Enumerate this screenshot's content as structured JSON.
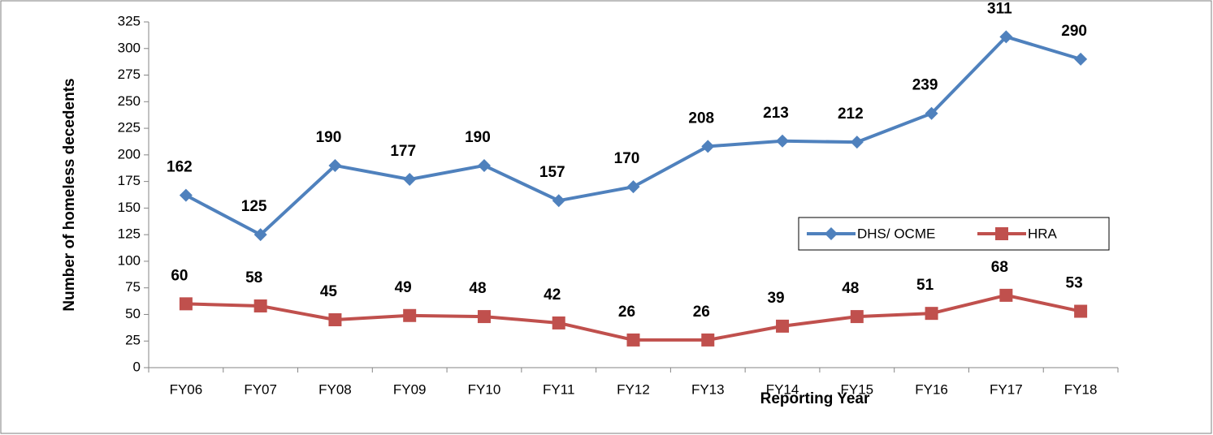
{
  "chart_data": {
    "type": "line",
    "x_label": "Reporting Year",
    "y_label": "Number of homeless decedents",
    "categories": [
      "FY06",
      "FY07",
      "FY08",
      "FY09",
      "FY10",
      "FY11",
      "FY12",
      "FY13",
      "FY14",
      "FY15",
      "FY16",
      "FY17",
      "FY18"
    ],
    "series": [
      {
        "name": "DHS/ OCME",
        "color": "#4f81bd",
        "marker": "diamond",
        "values": [
          162,
          125,
          190,
          177,
          190,
          157,
          170,
          208,
          213,
          212,
          239,
          311,
          290
        ]
      },
      {
        "name": "HRA",
        "color": "#c0504d",
        "marker": "square",
        "values": [
          60,
          58,
          45,
          49,
          48,
          42,
          26,
          26,
          39,
          48,
          51,
          68,
          53
        ]
      }
    ],
    "ylim": [
      0,
      325
    ],
    "yticks": [
      0,
      25,
      50,
      75,
      100,
      125,
      150,
      175,
      200,
      225,
      250,
      275,
      300,
      325
    ],
    "grid": false,
    "legend": "right"
  }
}
